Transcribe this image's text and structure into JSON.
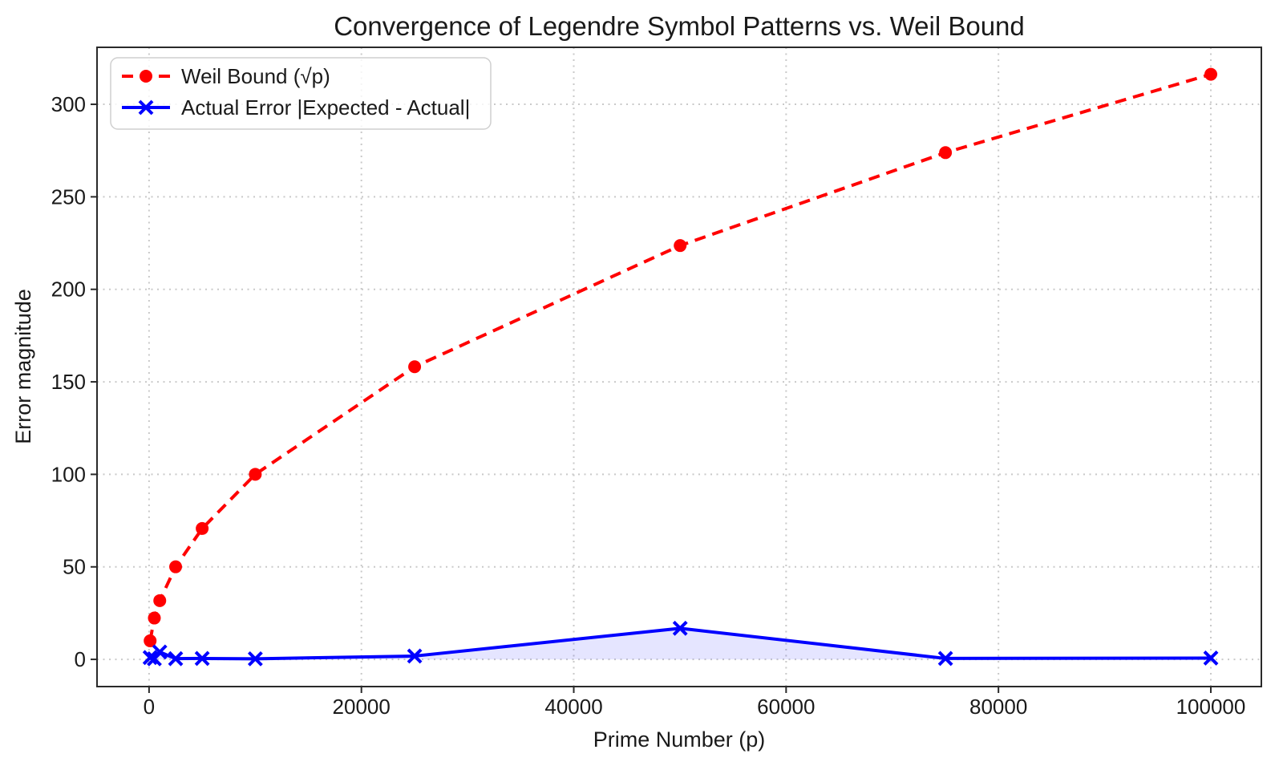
{
  "chart_data": {
    "type": "line",
    "title": "Convergence of Legendre Symbol Patterns vs. Weil Bound",
    "xlabel": "Prime Number (p)",
    "ylabel": "Error magnitude",
    "x_ticks": [
      0,
      20000,
      40000,
      60000,
      80000,
      100000
    ],
    "y_ticks": [
      0,
      50,
      100,
      150,
      200,
      250,
      300
    ],
    "xlim": [
      -4900,
      104760
    ],
    "ylim": [
      -14.7,
      330.8
    ],
    "grid": true,
    "grid_style": "dotted",
    "legend_position": "upper left",
    "x": [
      101,
      499,
      1009,
      2503,
      5003,
      10007,
      25013,
      50021,
      75011,
      100003
    ],
    "series": [
      {
        "name": "Weil Bound (√p)",
        "color": "#ff0000",
        "line_style": "dashed",
        "marker": "circle",
        "values": [
          10.05,
          22.34,
          31.76,
          50.03,
          70.73,
          100.03,
          158.15,
          223.65,
          273.88,
          316.23
        ]
      },
      {
        "name": "Actual Error |Expected - Actual|",
        "color": "#0000ff",
        "line_style": "solid",
        "marker": "x",
        "fill_to_zero": true,
        "fill_color": "rgba(0,0,255,0.10)",
        "values": [
          1.0,
          0.3,
          4.0,
          0.4,
          0.5,
          0.3,
          1.8,
          16.8,
          0.5,
          0.7
        ]
      }
    ],
    "colors": {
      "grid": "#c9c9c9",
      "spine": "#2a2a2a",
      "weil_bound": "#ff0000",
      "actual_error": "#0000ff",
      "legend_border": "#cfcfcf"
    }
  }
}
